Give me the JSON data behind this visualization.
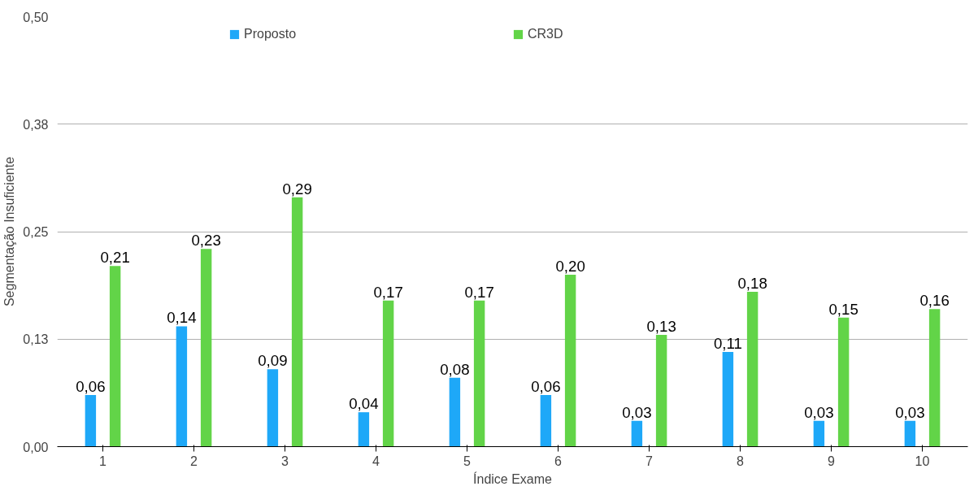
{
  "chart_data": {
    "type": "bar",
    "xlabel": "Índice Exame",
    "ylabel": "Segmentação Insuficiente",
    "categories": [
      "1",
      "2",
      "3",
      "4",
      "5",
      "6",
      "7",
      "8",
      "9",
      "10"
    ],
    "series": [
      {
        "name": "Proposto",
        "color": "#1ea8f8",
        "values": [
          0.06,
          0.14,
          0.09,
          0.04,
          0.08,
          0.06,
          0.03,
          0.11,
          0.03,
          0.03
        ],
        "value_labels": [
          "0,06",
          "0,14",
          "0,09",
          "0,04",
          "0,08",
          "0,06",
          "0,03",
          "0,11",
          "0,03",
          "0,03"
        ]
      },
      {
        "name": "CR3D",
        "color": "#62d448",
        "values": [
          0.21,
          0.23,
          0.29,
          0.17,
          0.17,
          0.2,
          0.13,
          0.18,
          0.15,
          0.16
        ],
        "value_labels": [
          "0,21",
          "0,23",
          "0,29",
          "0,17",
          "0,17",
          "0,20",
          "0,13",
          "0,18",
          "0,15",
          "0,16"
        ]
      }
    ],
    "ylim": [
      0,
      0.5
    ],
    "yticks": [
      {
        "value": 0,
        "label": "0,00"
      },
      {
        "value": 0.125,
        "label": "0,13"
      },
      {
        "value": 0.25,
        "label": "0,25"
      },
      {
        "value": 0.375,
        "label": "0,38"
      },
      {
        "value": 0.5,
        "label": "0,50"
      }
    ],
    "grid": "y",
    "legend": "top"
  }
}
